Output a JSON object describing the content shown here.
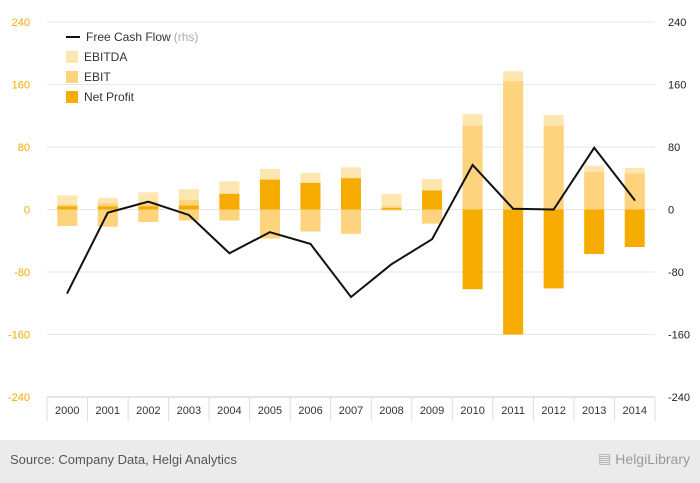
{
  "chart_data": {
    "type": "bar",
    "categories": [
      "2000",
      "2001",
      "2002",
      "2003",
      "2004",
      "2005",
      "2006",
      "2007",
      "2008",
      "2009",
      "2010",
      "2011",
      "2012",
      "2013",
      "2014"
    ],
    "series": [
      {
        "name": "EBITDA",
        "type": "bar",
        "color": "#fde6b0",
        "pos": [
          18,
          15,
          22,
          26,
          36,
          52,
          47,
          54,
          20,
          39,
          122,
          177,
          121,
          56,
          53
        ],
        "neg": [
          -21,
          -22,
          -16,
          -14,
          -14,
          -37,
          -28,
          -31,
          -1,
          -18,
          0,
          0,
          0,
          0,
          0
        ]
      },
      {
        "name": "EBIT",
        "type": "bar",
        "color": "#fdd37d",
        "pos": [
          6,
          8,
          10,
          12,
          20,
          39,
          34,
          40,
          4,
          25,
          107,
          164,
          107,
          48,
          46
        ],
        "neg": [
          -21,
          -22,
          -16,
          -14,
          -14,
          -37,
          -28,
          -31,
          -1,
          -18,
          0,
          0,
          0,
          0,
          0
        ]
      },
      {
        "name": "Net Profit",
        "type": "bar",
        "color": "#f5ab00",
        "values": [
          4,
          4,
          4,
          5,
          20,
          38,
          34,
          40,
          2,
          24,
          -102,
          -160,
          -101,
          -57,
          -48
        ]
      },
      {
        "name": "Free Cash Flow",
        "rhs_note": "(rhs)",
        "type": "line",
        "color": "#111111",
        "values": [
          -107,
          -4,
          10,
          -7,
          -56,
          -29,
          -44,
          -112,
          -70,
          -38,
          57,
          1,
          0,
          79,
          12
        ]
      }
    ],
    "ylim": [
      -240,
      240
    ],
    "yticks": [
      240,
      160,
      80,
      0,
      -80,
      -160,
      -240
    ],
    "y2ticks": [
      240,
      160,
      80,
      0,
      -80,
      -160,
      -240
    ],
    "grid": true,
    "legend_position": "top-left",
    "source": "Source: Company Data, Helgi Analytics",
    "brand": "HelgiLibrary"
  }
}
